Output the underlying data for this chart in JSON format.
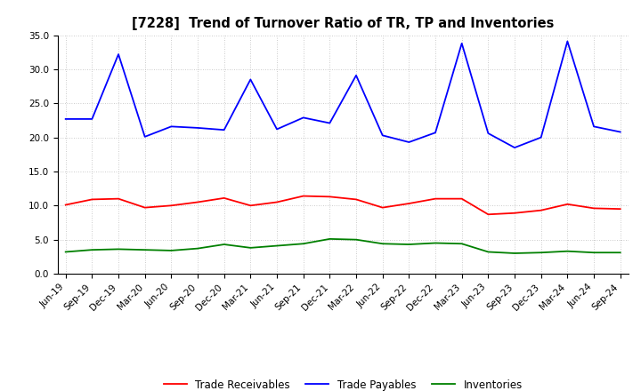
{
  "title": "[7228]  Trend of Turnover Ratio of TR, TP and Inventories",
  "x_labels": [
    "Jun-19",
    "Sep-19",
    "Dec-19",
    "Mar-20",
    "Jun-20",
    "Sep-20",
    "Dec-20",
    "Mar-21",
    "Jun-21",
    "Sep-21",
    "Dec-21",
    "Mar-22",
    "Jun-22",
    "Sep-22",
    "Dec-22",
    "Mar-23",
    "Jun-23",
    "Sep-23",
    "Dec-23",
    "Mar-24",
    "Jun-24",
    "Sep-24"
  ],
  "trade_receivables": [
    10.1,
    10.9,
    11.0,
    9.7,
    10.0,
    10.5,
    11.1,
    10.0,
    10.5,
    11.4,
    11.3,
    10.9,
    9.7,
    10.3,
    11.0,
    11.0,
    8.7,
    8.9,
    9.3,
    10.2,
    9.6,
    9.5
  ],
  "trade_payables": [
    22.7,
    22.7,
    32.2,
    20.1,
    21.6,
    21.4,
    21.1,
    28.5,
    21.2,
    22.9,
    22.1,
    29.1,
    20.3,
    19.3,
    20.7,
    33.8,
    20.6,
    18.5,
    20.0,
    34.1,
    21.6,
    20.8
  ],
  "inventories": [
    3.2,
    3.5,
    3.6,
    3.5,
    3.4,
    3.7,
    4.3,
    3.8,
    4.1,
    4.4,
    5.1,
    5.0,
    4.4,
    4.3,
    4.5,
    4.4,
    3.2,
    3.0,
    3.1,
    3.3,
    3.1,
    3.1
  ],
  "ylim": [
    0.0,
    35.0
  ],
  "yticks": [
    0.0,
    5.0,
    10.0,
    15.0,
    20.0,
    25.0,
    30.0,
    35.0
  ],
  "color_tr": "#ff0000",
  "color_tp": "#0000ff",
  "color_inv": "#008000",
  "background_color": "#ffffff",
  "grid_color": "#bbbbbb",
  "title_fontsize": 10.5,
  "tick_fontsize": 7.5,
  "legend_fontsize": 8.5,
  "linewidth": 1.3
}
